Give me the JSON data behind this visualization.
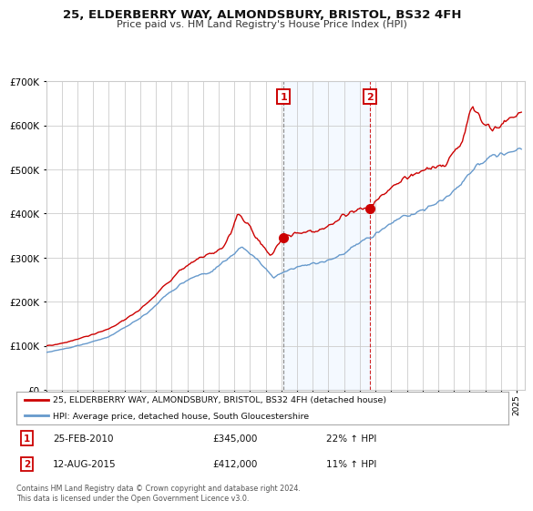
{
  "title": "25, ELDERBERRY WAY, ALMONDSBURY, BRISTOL, BS32 4FH",
  "subtitle": "Price paid vs. HM Land Registry's House Price Index (HPI)",
  "legend_line1": "25, ELDERBERRY WAY, ALMONDSBURY, BRISTOL, BS32 4FH (detached house)",
  "legend_line2": "HPI: Average price, detached house, South Gloucestershire",
  "annotation1_label": "1",
  "annotation1_date": "25-FEB-2010",
  "annotation1_price": "£345,000",
  "annotation1_hpi": "22% ↑ HPI",
  "annotation2_label": "2",
  "annotation2_date": "12-AUG-2015",
  "annotation2_price": "£412,000",
  "annotation2_hpi": "11% ↑ HPI",
  "footer": "Contains HM Land Registry data © Crown copyright and database right 2024.\nThis data is licensed under the Open Government Licence v3.0.",
  "red_color": "#cc0000",
  "blue_color": "#6699cc",
  "background_color": "#ffffff",
  "grid_color": "#cccccc",
  "annotation_box_color": "#cc0000",
  "shading_color": "#ddeeff",
  "marker1_x_year": 2010.14,
  "marker1_y": 345000,
  "marker2_x_year": 2015.62,
  "marker2_y": 412000,
  "vline1_x_year": 2010.14,
  "vline2_x_year": 2015.62,
  "shade_x1": 2010.14,
  "shade_x2": 2015.62,
  "ylim": [
    0,
    700000
  ],
  "xlim_start": 1995,
  "xlim_end": 2025.5
}
